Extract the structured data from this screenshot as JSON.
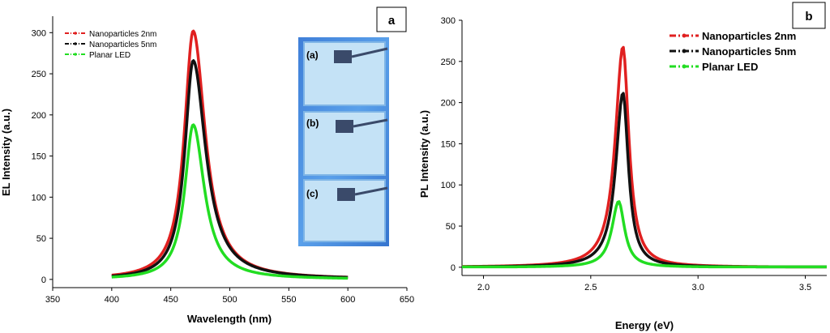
{
  "figure": {
    "panel_a_label": "a",
    "panel_b_label": "b",
    "inset_labels": [
      "(a)",
      "(b)",
      "(c)"
    ]
  },
  "chart_data": [
    {
      "id": "a",
      "type": "line",
      "title": "",
      "xlabel": "Wavelength (nm)",
      "ylabel": "EL Intensity (a.u.)",
      "xlim": [
        350,
        650
      ],
      "ylim": [
        -10,
        320
      ],
      "xticks": [
        350,
        400,
        450,
        500,
        550,
        600,
        650
      ],
      "yticks": [
        0,
        50,
        100,
        150,
        200,
        250,
        300
      ],
      "legend_position": "top-left",
      "series": [
        {
          "name": "Nanoparticles 2nm",
          "color": "#e02020",
          "peak_x": 469,
          "peak_y": 302,
          "sigma_left": 9.5,
          "sigma_right": 13.0,
          "x_range": [
            400,
            600
          ]
        },
        {
          "name": "Nanoparticles 5nm",
          "color": "#111111",
          "peak_x": 469,
          "peak_y": 266,
          "sigma_left": 9.0,
          "sigma_right": 13.5,
          "x_range": [
            400,
            600
          ]
        },
        {
          "name": "Planar LED",
          "color": "#22dd22",
          "peak_x": 469,
          "peak_y": 188,
          "sigma_left": 9.0,
          "sigma_right": 12.0,
          "x_range": [
            400,
            600
          ]
        }
      ]
    },
    {
      "id": "b",
      "type": "line",
      "title": "",
      "xlabel": "Energy (eV)",
      "ylabel": "PL Intensity (a.u.)",
      "xlim": [
        1.9,
        3.6
      ],
      "ylim": [
        -10,
        300
      ],
      "xticks": [
        2.0,
        2.5,
        3.0,
        3.5
      ],
      "xtick_labels": [
        "2.0",
        "2.5",
        "3.0",
        "3.5"
      ],
      "yticks": [
        0,
        50,
        100,
        150,
        200,
        250,
        300
      ],
      "legend_position": "top-right",
      "series": [
        {
          "name": "Nanoparticles 2nm",
          "color": "#e02020",
          "peak_x": 2.65,
          "peak_y": 268,
          "sigma_left": 0.045,
          "sigma_right": 0.035,
          "x_range": [
            1.9,
            3.6
          ]
        },
        {
          "name": "Nanoparticles 5nm",
          "color": "#111111",
          "peak_x": 2.65,
          "peak_y": 212,
          "sigma_left": 0.042,
          "sigma_right": 0.032,
          "x_range": [
            1.9,
            3.6
          ]
        },
        {
          "name": "Planar LED",
          "color": "#22dd22",
          "peak_x": 2.63,
          "peak_y": 80,
          "sigma_left": 0.04,
          "sigma_right": 0.035,
          "x_range": [
            1.9,
            3.6
          ]
        }
      ]
    }
  ]
}
